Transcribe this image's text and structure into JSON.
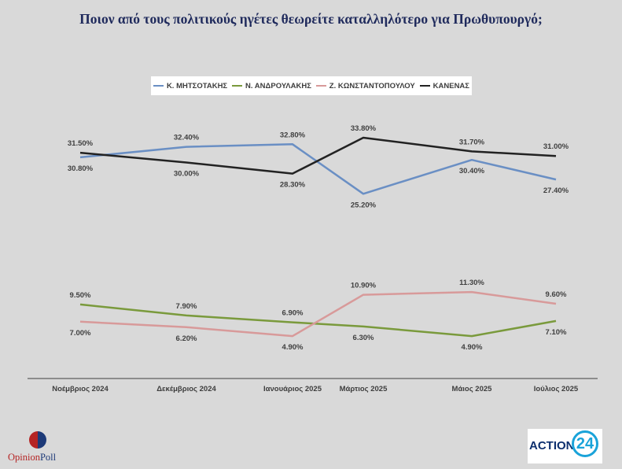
{
  "title": "Ποιον από τους πολιτικούς ηγέτες θεωρείτε καταλληλότερο για Πρωθυπουργό;",
  "logos": {
    "left_text_a": "Opinion",
    "left_text_b": "Poll",
    "right_text": "ACTION",
    "right_number": "24"
  },
  "chart_data": {
    "type": "line",
    "title": "Ποιον από τους πολιτικούς ηγέτες θεωρείτε καταλληλότερο για Πρωθυπουργό;",
    "xlabel": "",
    "ylabel": "",
    "categories": [
      "Νοέμβριος 2024",
      "Δεκέμβριος  2024",
      "Ιανουάριος 2025",
      "Μάρτιος 2025",
      "Μάιος 2025",
      "Ιούλιος 2025"
    ],
    "legend_position": "top",
    "grid": false,
    "series": [
      {
        "name": "Κ. ΜΗΤΣΟΤΑΚΗΣ",
        "color": "#6a8fc4",
        "values": [
          30.8,
          32.4,
          32.8,
          25.2,
          30.4,
          27.4
        ],
        "labels": [
          "30.80%",
          "32.40%",
          "32.80%",
          "25.20%",
          "30.40%",
          "27.40%"
        ]
      },
      {
        "name": "Ν. ΑΝΔΡΟΥΛΑΚΗΣ",
        "color": "#7a9a3c",
        "values": [
          9.5,
          7.9,
          6.9,
          6.3,
          4.9,
          7.1
        ],
        "labels": [
          "9.50%",
          "7.90%",
          "6.90%",
          "6.30%",
          "4.90%",
          "7.10%"
        ]
      },
      {
        "name": "Ζ. ΚΩΝΣΤΑΝΤΟΠΟΥΛΟΥ",
        "color": "#d89a9a",
        "values": [
          7.0,
          6.2,
          4.9,
          10.9,
          11.3,
          9.6
        ],
        "labels": [
          "7.00%",
          "6.20%",
          "4.90%",
          "10.90%",
          "11.30%",
          "9.60%"
        ]
      },
      {
        "name": "ΚΑΝΕΝΑΣ",
        "color": "#222222",
        "values": [
          31.5,
          30.0,
          28.3,
          33.8,
          31.7,
          31.0
        ],
        "labels": [
          "31.50%",
          "30.00%",
          "28.30%",
          "33.80%",
          "31.70%",
          "31.00%"
        ]
      }
    ]
  }
}
